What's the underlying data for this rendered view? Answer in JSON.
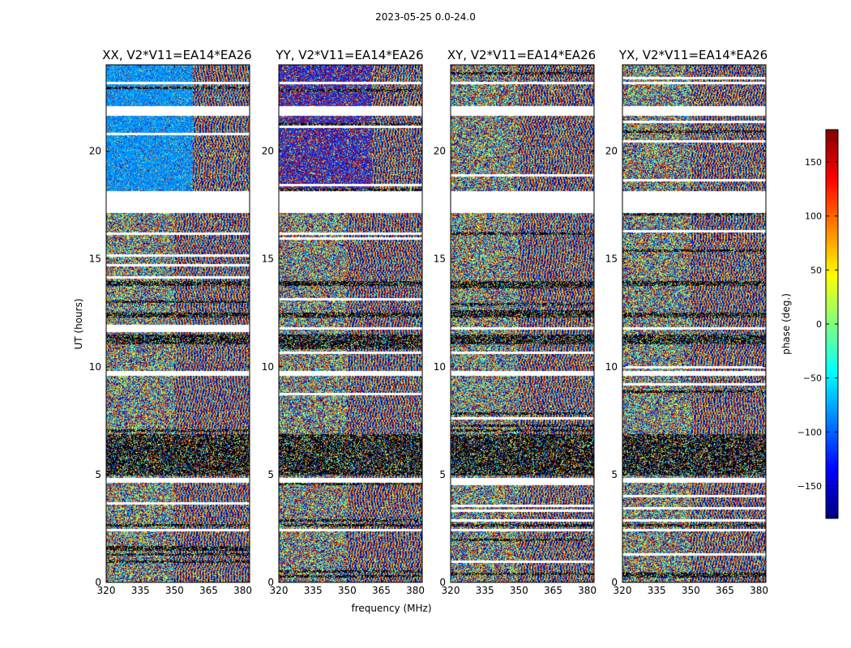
{
  "chart_data": {
    "type": "heatmap",
    "title": "2023-05-25 0.0-24.0",
    "xlabel": "frequency (MHz)",
    "ylabel": "UT (hours)",
    "xticks": [
      320,
      335,
      350,
      365,
      380
    ],
    "yticks": [
      0,
      5,
      10,
      15,
      20
    ],
    "xlim": [
      320,
      383
    ],
    "ylim": [
      0,
      24
    ],
    "panels": [
      {
        "title": "XX, V2*V11=EA14*EA26",
        "coherent_from_freq": 358,
        "coherent_from_hour": 18.2
      },
      {
        "title": "YY, V2*V11=EA14*EA26",
        "coherent_from_freq": 361,
        "coherent_from_hour": 18.2
      },
      {
        "title": "XY, V2*V11=EA14*EA26",
        "coherent_from_freq": null,
        "coherent_from_hour": null
      },
      {
        "title": "YX, V2*V11=EA14*EA26",
        "coherent_from_freq": null,
        "coherent_from_hour": null
      }
    ],
    "blank_hour_ranges": [
      [
        17.15,
        18.2
      ],
      [
        21.65,
        22.15
      ],
      [
        23.1,
        23.3
      ],
      [
        9.6,
        9.85
      ],
      [
        11.75,
        11.9
      ],
      [
        4.7,
        4.85
      ],
      [
        2.45,
        2.55
      ]
    ],
    "dark_hour_ranges": [
      [
        11.05,
        11.5
      ],
      [
        13.75,
        14.05
      ],
      [
        12.3,
        12.55
      ],
      [
        5.0,
        6.9
      ],
      [
        2.6,
        2.75
      ]
    ],
    "colorbar": {
      "label": "phase (deg.)",
      "ticks": [
        150,
        100,
        50,
        0,
        -50,
        -100,
        -150
      ],
      "range": [
        -180,
        180
      ],
      "colormap": "jet"
    },
    "colors": {
      "jet_stops": [
        "#00007f",
        "#0000ff",
        "#007fff",
        "#00ffff",
        "#7fff7f",
        "#ffff00",
        "#ff7f00",
        "#ff0000",
        "#7f0000"
      ],
      "band_blue": "#1c4bff",
      "axis": "#000000",
      "background": "#ffffff"
    }
  }
}
